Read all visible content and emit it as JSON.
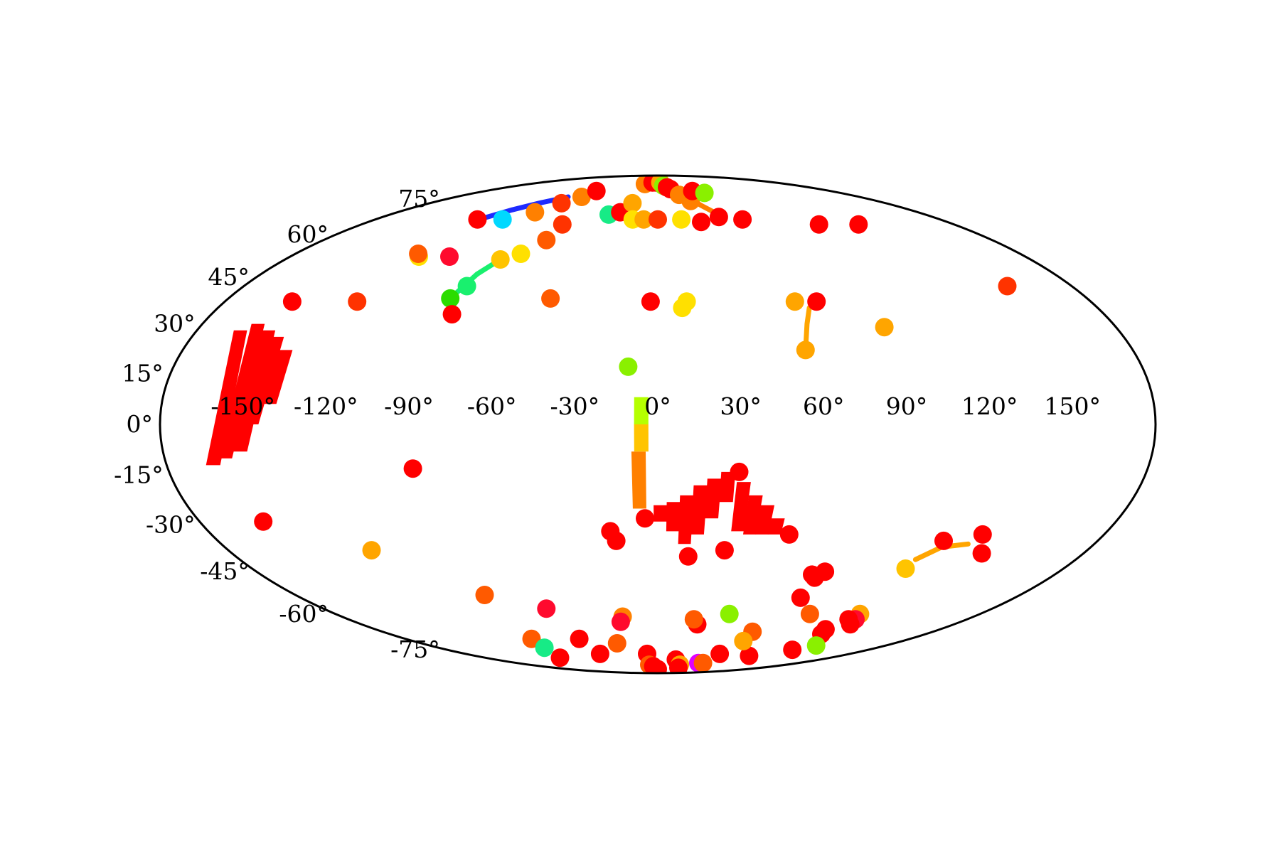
{
  "chart_data": {
    "type": "scatter",
    "projection": "mollweide",
    "title": "",
    "xlabel": "",
    "ylabel": "",
    "grid": false,
    "legend": "none",
    "xlim": [
      -180,
      180
    ],
    "ylim": [
      -90,
      90
    ],
    "xticks": [
      {
        "value": -150,
        "label": "-150°"
      },
      {
        "value": -120,
        "label": "-120°"
      },
      {
        "value": -90,
        "label": "-90°"
      },
      {
        "value": -60,
        "label": "-60°"
      },
      {
        "value": -30,
        "label": "-30°"
      },
      {
        "value": 0,
        "label": "0°"
      },
      {
        "value": 30,
        "label": "30°"
      },
      {
        "value": 60,
        "label": "60°"
      },
      {
        "value": 90,
        "label": "90°"
      },
      {
        "value": 120,
        "label": "120°"
      },
      {
        "value": 150,
        "label": "150°"
      }
    ],
    "yticks": [
      {
        "value": 75,
        "label": "75°"
      },
      {
        "value": 60,
        "label": "60°"
      },
      {
        "value": 45,
        "label": "45°"
      },
      {
        "value": 30,
        "label": "30°"
      },
      {
        "value": 15,
        "label": "15°"
      },
      {
        "value": 0,
        "label": "0°"
      },
      {
        "value": -15,
        "label": "-15°"
      },
      {
        "value": -30,
        "label": "-30°"
      },
      {
        "value": -45,
        "label": "-45°"
      },
      {
        "value": -60,
        "label": "-60°"
      },
      {
        "value": -75,
        "label": "-75°"
      }
    ],
    "colors": {
      "red": "#ff0000",
      "crimson": "#ff0a2e",
      "red_orange": "#ff3300",
      "orange_red": "#ff5a00",
      "orange": "#ff8000",
      "amber": "#ffa500",
      "yellow_orange": "#ffc400",
      "yellow": "#ffe000",
      "lime": "#b5ff00",
      "yellow_green": "#8af000",
      "green": "#2bdc00",
      "spring_green": "#19f06e",
      "sea_green": "#17eb86",
      "cyan": "#00d8ff",
      "blue": "#1e2bff",
      "magenta": "#e000ff"
    },
    "points": [
      {
        "lon": -152,
        "lat": 37,
        "color": "red"
      },
      {
        "lon": -125,
        "lat": 37,
        "color": "red_orange"
      },
      {
        "lon": -155,
        "lat": -29,
        "color": "red"
      },
      {
        "lon": -120,
        "lat": -38,
        "color": "amber"
      },
      {
        "lon": -117,
        "lat": 52,
        "color": "yellow"
      },
      {
        "lon": -119,
        "lat": 53,
        "color": "orange_red"
      },
      {
        "lon": -115,
        "lat": 66,
        "color": "red"
      },
      {
        "lon": -99,
        "lat": 66,
        "color": "cyan"
      },
      {
        "lon": -85,
        "lat": 69,
        "color": "orange"
      },
      {
        "lon": -102,
        "lat": 52,
        "color": "crimson"
      },
      {
        "lon": -76,
        "lat": 73,
        "color": "red_orange"
      },
      {
        "lon": -68,
        "lat": 76,
        "color": "orange"
      },
      {
        "lon": -64,
        "lat": 79,
        "color": "red"
      },
      {
        "lon": -58,
        "lat": 64,
        "color": "red_orange"
      },
      {
        "lon": -60,
        "lat": 58,
        "color": "orange_red"
      },
      {
        "lon": -68,
        "lat": 53,
        "color": "yellow"
      },
      {
        "lon": -76,
        "lat": 51,
        "color": "yellow_orange"
      },
      {
        "lon": -83,
        "lat": 42,
        "color": "spring_green"
      },
      {
        "lon": -87,
        "lat": 38,
        "color": "green"
      },
      {
        "lon": -83,
        "lat": 33,
        "color": "red"
      },
      {
        "lon": -45,
        "lat": 38,
        "color": "orange_red"
      },
      {
        "lon": -90,
        "lat": -13,
        "color": "red"
      },
      {
        "lon": -60,
        "lat": -58,
        "color": "crimson"
      },
      {
        "lon": -86,
        "lat": -53,
        "color": "orange_red"
      },
      {
        "lon": -90,
        "lat": -70,
        "color": "orange_red"
      },
      {
        "lon": -93,
        "lat": -74,
        "color": "sea_green"
      },
      {
        "lon": -102,
        "lat": -79,
        "color": "red"
      },
      {
        "lon": -56,
        "lat": -70,
        "color": "red"
      },
      {
        "lon": -54,
        "lat": -77,
        "color": "red"
      },
      {
        "lon": -33,
        "lat": 68,
        "color": "sea_green"
      },
      {
        "lon": -26,
        "lat": 69,
        "color": "red"
      },
      {
        "lon": -20,
        "lat": 73,
        "color": "amber"
      },
      {
        "lon": -16,
        "lat": 66,
        "color": "yellow"
      },
      {
        "lon": -9,
        "lat": 66,
        "color": "amber"
      },
      {
        "lon": -18,
        "lat": 83,
        "color": "orange"
      },
      {
        "lon": -8,
        "lat": 84,
        "color": "red"
      },
      {
        "lon": -3,
        "lat": 84,
        "color": "red"
      },
      {
        "lon": 1,
        "lat": 85,
        "color": "red"
      },
      {
        "lon": 4,
        "lat": 84,
        "color": "amber"
      },
      {
        "lon": 7,
        "lat": 82,
        "color": "yellow_green"
      },
      {
        "lon": 11,
        "lat": 81,
        "color": "red"
      },
      {
        "lon": 14,
        "lat": 80,
        "color": "red"
      },
      {
        "lon": 20,
        "lat": 77,
        "color": "orange"
      },
      {
        "lon": 27,
        "lat": 74,
        "color": "orange"
      },
      {
        "lon": 0,
        "lat": 66,
        "color": "red_orange"
      },
      {
        "lon": 15,
        "lat": 66,
        "color": "yellow"
      },
      {
        "lon": 27,
        "lat": 65,
        "color": "red"
      },
      {
        "lon": 40,
        "lat": 67,
        "color": "red"
      },
      {
        "lon": 54,
        "lat": 66,
        "color": "red"
      },
      {
        "lon": 36,
        "lat": 79,
        "color": "red"
      },
      {
        "lon": 46,
        "lat": 78,
        "color": "yellow_green"
      },
      {
        "lon": -3,
        "lat": 37,
        "color": "red"
      },
      {
        "lon": 12,
        "lat": 37,
        "color": "yellow"
      },
      {
        "lon": 10,
        "lat": 35,
        "color": "yellow"
      },
      {
        "lon": -11,
        "lat": 17,
        "color": "yellow_green"
      },
      {
        "lon": 57,
        "lat": 37,
        "color": "amber"
      },
      {
        "lon": 66,
        "lat": 37,
        "color": "red"
      },
      {
        "lon": 56,
        "lat": 22,
        "color": "amber"
      },
      {
        "lon": 89,
        "lat": 29,
        "color": "amber"
      },
      {
        "lon": 98,
        "lat": 64,
        "color": "red"
      },
      {
        "lon": 122,
        "lat": 64,
        "color": "red"
      },
      {
        "lon": 152,
        "lat": 42,
        "color": "red_orange"
      },
      {
        "lon": -19,
        "lat": -32,
        "color": "red"
      },
      {
        "lon": -17,
        "lat": -35,
        "color": "red"
      },
      {
        "lon": -5,
        "lat": -28,
        "color": "red"
      },
      {
        "lon": 13,
        "lat": -40,
        "color": "red"
      },
      {
        "lon": 28,
        "lat": -38,
        "color": "red"
      },
      {
        "lon": 30,
        "lat": -14,
        "color": "red"
      },
      {
        "lon": 53,
        "lat": -33,
        "color": "red"
      },
      {
        "lon": 110,
        "lat": -44,
        "color": "yellow_orange"
      },
      {
        "lon": 117,
        "lat": -35,
        "color": "red"
      },
      {
        "lon": 131,
        "lat": -33,
        "color": "red"
      },
      {
        "lon": 137,
        "lat": -39,
        "color": "red"
      },
      {
        "lon": 70,
        "lat": -46,
        "color": "red"
      },
      {
        "lon": 72,
        "lat": -47,
        "color": "red"
      },
      {
        "lon": 75,
        "lat": -45,
        "color": "red"
      },
      {
        "lon": 72,
        "lat": -54,
        "color": "red"
      },
      {
        "lon": 85,
        "lat": -60,
        "color": "orange_red"
      },
      {
        "lon": 113,
        "lat": -60,
        "color": "amber"
      },
      {
        "lon": 115,
        "lat": -62,
        "color": "crimson"
      },
      {
        "lon": 111,
        "lat": -62,
        "color": "red"
      },
      {
        "lon": 110,
        "lat": -68,
        "color": "red"
      },
      {
        "lon": 107,
        "lat": -66,
        "color": "red"
      },
      {
        "lon": 117,
        "lat": -64,
        "color": "red"
      },
      {
        "lon": 125,
        "lat": -73,
        "color": "yellow_green"
      },
      {
        "lon": 115,
        "lat": -75,
        "color": "red"
      },
      {
        "lon": 90,
        "lat": -78,
        "color": "red"
      },
      {
        "lon": 62,
        "lat": -67,
        "color": "orange_red"
      },
      {
        "lon": 63,
        "lat": -71,
        "color": "amber"
      },
      {
        "lon": 58,
        "lat": -77,
        "color": "red"
      },
      {
        "lon": 40,
        "lat": -60,
        "color": "yellow_green"
      },
      {
        "lon": 24,
        "lat": -64,
        "color": "red"
      },
      {
        "lon": 21,
        "lat": -62,
        "color": "orange_red"
      },
      {
        "lon": -20,
        "lat": -61,
        "color": "orange"
      },
      {
        "lon": -22,
        "lat": -63,
        "color": "crimson"
      },
      {
        "lon": -31,
        "lat": -72,
        "color": "orange_red"
      },
      {
        "lon": -10,
        "lat": -77,
        "color": "red"
      },
      {
        "lon": -12,
        "lat": -83,
        "color": "orange_red"
      },
      {
        "lon": -7,
        "lat": -84,
        "color": "red"
      },
      {
        "lon": 0,
        "lat": -86,
        "color": "red"
      },
      {
        "lon": 20,
        "lat": -80,
        "color": "red"
      },
      {
        "lon": 31,
        "lat": -83,
        "color": "amber"
      },
      {
        "lon": 36,
        "lat": -85,
        "color": "red"
      },
      {
        "lon": 52,
        "lat": -82,
        "color": "magenta"
      },
      {
        "lon": 58,
        "lat": -82,
        "color": "orange_red"
      }
    ],
    "blocks": [
      {
        "lon": -163,
        "lat_min": -12,
        "lat_max": 28,
        "color": "red"
      },
      {
        "lon": -158,
        "lat_min": -10,
        "lat_max": 30,
        "color": "red"
      },
      {
        "lon": -152,
        "lat_min": -8,
        "lat_max": 28,
        "color": "red"
      },
      {
        "lon": -147,
        "lat_min": 0,
        "lat_max": 26,
        "color": "red"
      },
      {
        "lon": -141,
        "lat_min": 6,
        "lat_max": 22,
        "color": "red"
      },
      {
        "lon": -7,
        "lat_min": -25,
        "lat_max": -8,
        "color": "orange"
      },
      {
        "lon": -6,
        "lat_min": -8,
        "lat_max": 0,
        "color": "yellow_orange"
      },
      {
        "lon": -6,
        "lat_min": 0,
        "lat_max": 8,
        "color": "lime"
      },
      {
        "lon": 1,
        "lat_min": -29,
        "lat_max": -24,
        "color": "red"
      },
      {
        "lon": 6,
        "lat_min": -32,
        "lat_max": -23,
        "color": "red"
      },
      {
        "lon": 11,
        "lat_min": -36,
        "lat_max": -21,
        "color": "red"
      },
      {
        "lon": 16,
        "lat_min": -33,
        "lat_max": -18,
        "color": "red"
      },
      {
        "lon": 21,
        "lat_min": -28,
        "lat_max": -16,
        "color": "red"
      },
      {
        "lon": 26,
        "lat_min": -23,
        "lat_max": -14,
        "color": "red"
      },
      {
        "lon": 32,
        "lat_min": -32,
        "lat_max": -17,
        "color": "red"
      },
      {
        "lon": 37,
        "lat_min": -33,
        "lat_max": -21,
        "color": "red"
      },
      {
        "lon": 42,
        "lat_min": -33,
        "lat_max": -24,
        "color": "red"
      },
      {
        "lon": 47,
        "lat_min": -33,
        "lat_max": -28,
        "color": "red"
      }
    ],
    "tracks": [
      {
        "color": "blue",
        "coords": [
          [
            -114,
            66
          ],
          [
            -104,
            70
          ],
          [
            -94,
            73
          ],
          [
            -80,
            76
          ]
        ]
      },
      {
        "color": "spring_green",
        "coords": [
          [
            -87,
            38
          ],
          [
            -82,
            46
          ],
          [
            -76,
            51
          ]
        ]
      },
      {
        "color": "amber",
        "coords": [
          [
            56,
            22
          ],
          [
            59,
            30
          ],
          [
            62,
            35
          ]
        ]
      },
      {
        "color": "orange",
        "coords": [
          [
            28,
            75
          ],
          [
            33,
            72
          ],
          [
            39,
            69
          ]
        ]
      },
      {
        "color": "amber",
        "coords": [
          [
            111,
            -41
          ],
          [
            118,
            -37
          ],
          [
            128,
            -36
          ]
        ]
      }
    ]
  }
}
